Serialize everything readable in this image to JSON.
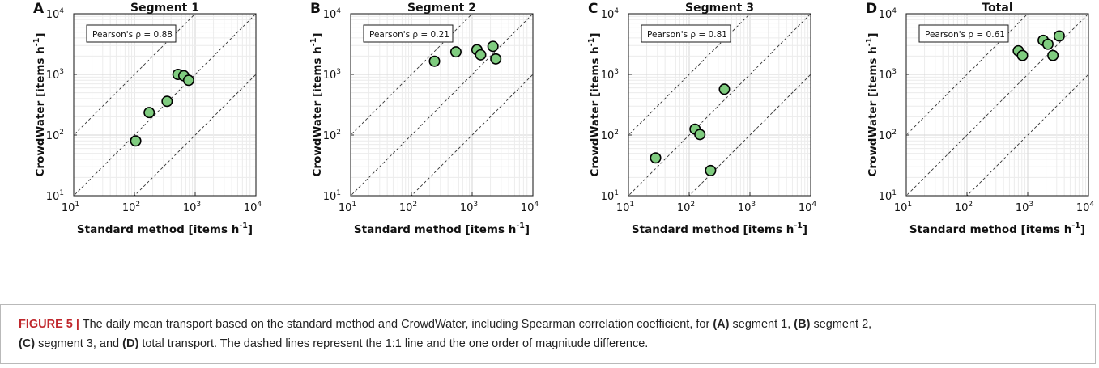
{
  "axes": {
    "xlabel_base": "Standard method [items h",
    "ylabel_base": "CrowdWater [items h",
    "unit_exp": "-1",
    "unit_close": "]",
    "tick_base": "10",
    "tick_exps": [
      "1",
      "2",
      "3",
      "4"
    ]
  },
  "chart_data": [
    {
      "type": "scatter",
      "panel": "A",
      "title": "Segment 1",
      "annotation": "Pearson's ρ = 0.88",
      "xlabel": "Standard method [items h^-1]",
      "ylabel": "CrowdWater [items h^-1]",
      "xscale": "log",
      "yscale": "log",
      "xlim": [
        10,
        10000
      ],
      "ylim": [
        10,
        10000
      ],
      "grid": true,
      "reference_lines": [
        "y = x/10",
        "y = x",
        "y = 10x"
      ],
      "marker_color": "#7fcc7f",
      "points": [
        [
          105,
          80
        ],
        [
          175,
          235
        ],
        [
          345,
          360
        ],
        [
          520,
          1000
        ],
        [
          650,
          950
        ],
        [
          780,
          800
        ]
      ]
    },
    {
      "type": "scatter",
      "panel": "B",
      "title": "Segment 2",
      "annotation": "Pearson's ρ = 0.21",
      "xlabel": "Standard method [items h^-1]",
      "ylabel": "CrowdWater [items h^-1]",
      "xscale": "log",
      "yscale": "log",
      "xlim": [
        10,
        10000
      ],
      "ylim": [
        10,
        10000
      ],
      "grid": true,
      "reference_lines": [
        "y = x/10",
        "y = x",
        "y = 10x"
      ],
      "marker_color": "#7fcc7f",
      "points": [
        [
          240,
          1650
        ],
        [
          540,
          2350
        ],
        [
          1200,
          2550
        ],
        [
          1380,
          2100
        ],
        [
          2200,
          2900
        ],
        [
          2450,
          1800
        ]
      ]
    },
    {
      "type": "scatter",
      "panel": "C",
      "title": "Segment 3",
      "annotation": "Pearson's ρ = 0.81",
      "xlabel": "Standard method [items h^-1]",
      "ylabel": "CrowdWater [items h^-1]",
      "xscale": "log",
      "yscale": "log",
      "xlim": [
        10,
        10000
      ],
      "ylim": [
        10,
        10000
      ],
      "grid": true,
      "reference_lines": [
        "y = x/10",
        "y = x",
        "y = 10x"
      ],
      "marker_color": "#7fcc7f",
      "points": [
        [
          28,
          42
        ],
        [
          125,
          125
        ],
        [
          150,
          102
        ],
        [
          225,
          26
        ],
        [
          380,
          570
        ]
      ]
    },
    {
      "type": "scatter",
      "panel": "D",
      "title": "Total",
      "annotation": "Pearson's ρ = 0.61",
      "xlabel": "Standard method [items h^-1]",
      "ylabel": "CrowdWater [items h^-1]",
      "xscale": "log",
      "yscale": "log",
      "xlim": [
        10,
        10000
      ],
      "ylim": [
        10,
        10000
      ],
      "grid": true,
      "reference_lines": [
        "y = x/10",
        "y = x",
        "y = 10x"
      ],
      "marker_color": "#7fcc7f",
      "points": [
        [
          700,
          2450
        ],
        [
          820,
          2050
        ],
        [
          1800,
          3650
        ],
        [
          2150,
          3150
        ],
        [
          2600,
          2050
        ],
        [
          3300,
          4300
        ]
      ]
    }
  ],
  "caption": {
    "label": "FIGURE 5 |",
    "t1": " The daily mean transport based on the standard method and CrowdWater, including Spearman correlation coefficient, for ",
    "a": "(A)",
    "t2": " segment 1, ",
    "b": "(B)",
    "t3": " segment 2,",
    "c": "(C)",
    "t4": " segment 3, and ",
    "d": "(D)",
    "t5": " total transport. The dashed lines represent the 1:1 line and the one order of magnitude difference."
  }
}
